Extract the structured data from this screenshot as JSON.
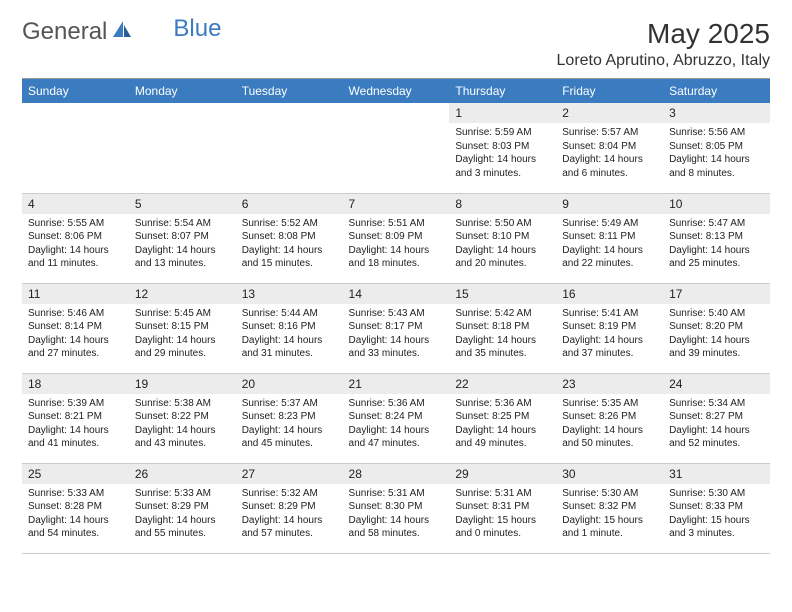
{
  "logo": {
    "text1": "General",
    "text2": "Blue"
  },
  "title": "May 2025",
  "location": "Loreto Aprutino, Abruzzo, Italy",
  "colors": {
    "header_bg": "#3b7bbf",
    "header_text": "#ffffff",
    "daynum_bg": "#ececec",
    "rule": "#999999",
    "cell_border": "#cccccc",
    "body_text": "#222222",
    "logo_blue": "#3b7bbf",
    "logo_gray": "#555555"
  },
  "weekdays": [
    "Sunday",
    "Monday",
    "Tuesday",
    "Wednesday",
    "Thursday",
    "Friday",
    "Saturday"
  ],
  "weeks": [
    [
      null,
      null,
      null,
      null,
      {
        "n": "1",
        "sr": "Sunrise: 5:59 AM",
        "ss": "Sunset: 8:03 PM",
        "dl": "Daylight: 14 hours and 3 minutes."
      },
      {
        "n": "2",
        "sr": "Sunrise: 5:57 AM",
        "ss": "Sunset: 8:04 PM",
        "dl": "Daylight: 14 hours and 6 minutes."
      },
      {
        "n": "3",
        "sr": "Sunrise: 5:56 AM",
        "ss": "Sunset: 8:05 PM",
        "dl": "Daylight: 14 hours and 8 minutes."
      }
    ],
    [
      {
        "n": "4",
        "sr": "Sunrise: 5:55 AM",
        "ss": "Sunset: 8:06 PM",
        "dl": "Daylight: 14 hours and 11 minutes."
      },
      {
        "n": "5",
        "sr": "Sunrise: 5:54 AM",
        "ss": "Sunset: 8:07 PM",
        "dl": "Daylight: 14 hours and 13 minutes."
      },
      {
        "n": "6",
        "sr": "Sunrise: 5:52 AM",
        "ss": "Sunset: 8:08 PM",
        "dl": "Daylight: 14 hours and 15 minutes."
      },
      {
        "n": "7",
        "sr": "Sunrise: 5:51 AM",
        "ss": "Sunset: 8:09 PM",
        "dl": "Daylight: 14 hours and 18 minutes."
      },
      {
        "n": "8",
        "sr": "Sunrise: 5:50 AM",
        "ss": "Sunset: 8:10 PM",
        "dl": "Daylight: 14 hours and 20 minutes."
      },
      {
        "n": "9",
        "sr": "Sunrise: 5:49 AM",
        "ss": "Sunset: 8:11 PM",
        "dl": "Daylight: 14 hours and 22 minutes."
      },
      {
        "n": "10",
        "sr": "Sunrise: 5:47 AM",
        "ss": "Sunset: 8:13 PM",
        "dl": "Daylight: 14 hours and 25 minutes."
      }
    ],
    [
      {
        "n": "11",
        "sr": "Sunrise: 5:46 AM",
        "ss": "Sunset: 8:14 PM",
        "dl": "Daylight: 14 hours and 27 minutes."
      },
      {
        "n": "12",
        "sr": "Sunrise: 5:45 AM",
        "ss": "Sunset: 8:15 PM",
        "dl": "Daylight: 14 hours and 29 minutes."
      },
      {
        "n": "13",
        "sr": "Sunrise: 5:44 AM",
        "ss": "Sunset: 8:16 PM",
        "dl": "Daylight: 14 hours and 31 minutes."
      },
      {
        "n": "14",
        "sr": "Sunrise: 5:43 AM",
        "ss": "Sunset: 8:17 PM",
        "dl": "Daylight: 14 hours and 33 minutes."
      },
      {
        "n": "15",
        "sr": "Sunrise: 5:42 AM",
        "ss": "Sunset: 8:18 PM",
        "dl": "Daylight: 14 hours and 35 minutes."
      },
      {
        "n": "16",
        "sr": "Sunrise: 5:41 AM",
        "ss": "Sunset: 8:19 PM",
        "dl": "Daylight: 14 hours and 37 minutes."
      },
      {
        "n": "17",
        "sr": "Sunrise: 5:40 AM",
        "ss": "Sunset: 8:20 PM",
        "dl": "Daylight: 14 hours and 39 minutes."
      }
    ],
    [
      {
        "n": "18",
        "sr": "Sunrise: 5:39 AM",
        "ss": "Sunset: 8:21 PM",
        "dl": "Daylight: 14 hours and 41 minutes."
      },
      {
        "n": "19",
        "sr": "Sunrise: 5:38 AM",
        "ss": "Sunset: 8:22 PM",
        "dl": "Daylight: 14 hours and 43 minutes."
      },
      {
        "n": "20",
        "sr": "Sunrise: 5:37 AM",
        "ss": "Sunset: 8:23 PM",
        "dl": "Daylight: 14 hours and 45 minutes."
      },
      {
        "n": "21",
        "sr": "Sunrise: 5:36 AM",
        "ss": "Sunset: 8:24 PM",
        "dl": "Daylight: 14 hours and 47 minutes."
      },
      {
        "n": "22",
        "sr": "Sunrise: 5:36 AM",
        "ss": "Sunset: 8:25 PM",
        "dl": "Daylight: 14 hours and 49 minutes."
      },
      {
        "n": "23",
        "sr": "Sunrise: 5:35 AM",
        "ss": "Sunset: 8:26 PM",
        "dl": "Daylight: 14 hours and 50 minutes."
      },
      {
        "n": "24",
        "sr": "Sunrise: 5:34 AM",
        "ss": "Sunset: 8:27 PM",
        "dl": "Daylight: 14 hours and 52 minutes."
      }
    ],
    [
      {
        "n": "25",
        "sr": "Sunrise: 5:33 AM",
        "ss": "Sunset: 8:28 PM",
        "dl": "Daylight: 14 hours and 54 minutes."
      },
      {
        "n": "26",
        "sr": "Sunrise: 5:33 AM",
        "ss": "Sunset: 8:29 PM",
        "dl": "Daylight: 14 hours and 55 minutes."
      },
      {
        "n": "27",
        "sr": "Sunrise: 5:32 AM",
        "ss": "Sunset: 8:29 PM",
        "dl": "Daylight: 14 hours and 57 minutes."
      },
      {
        "n": "28",
        "sr": "Sunrise: 5:31 AM",
        "ss": "Sunset: 8:30 PM",
        "dl": "Daylight: 14 hours and 58 minutes."
      },
      {
        "n": "29",
        "sr": "Sunrise: 5:31 AM",
        "ss": "Sunset: 8:31 PM",
        "dl": "Daylight: 15 hours and 0 minutes."
      },
      {
        "n": "30",
        "sr": "Sunrise: 5:30 AM",
        "ss": "Sunset: 8:32 PM",
        "dl": "Daylight: 15 hours and 1 minute."
      },
      {
        "n": "31",
        "sr": "Sunrise: 5:30 AM",
        "ss": "Sunset: 8:33 PM",
        "dl": "Daylight: 15 hours and 3 minutes."
      }
    ]
  ]
}
